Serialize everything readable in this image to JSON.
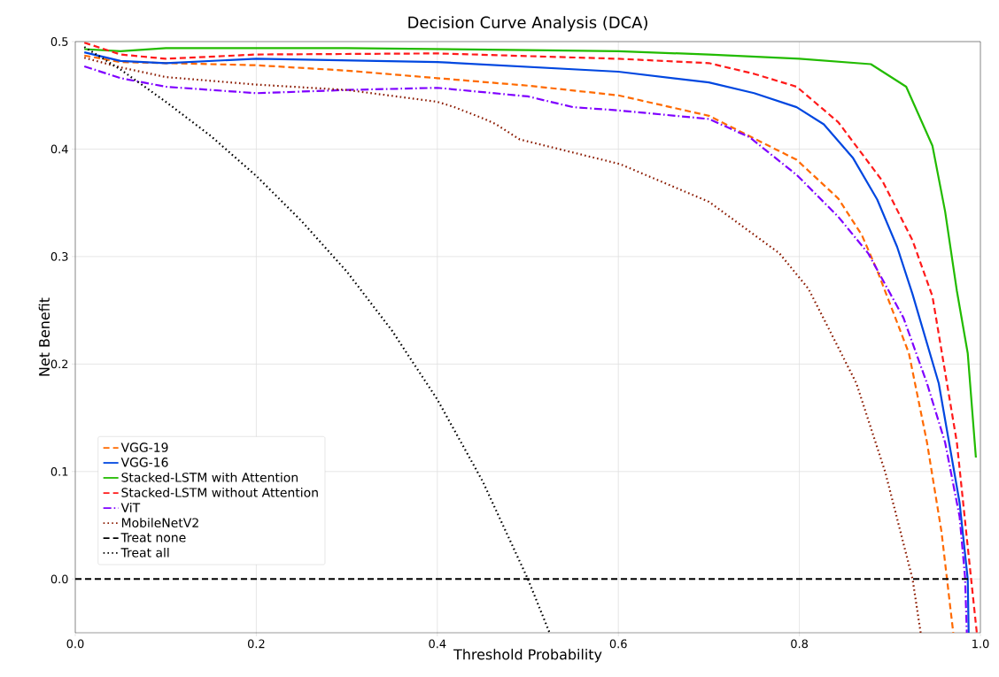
{
  "chart_data": {
    "type": "line",
    "title": "Decision Curve Analysis (DCA)",
    "xlabel": "Threshold Probability",
    "ylabel": "Net Benefit",
    "xlim": [
      0.0,
      1.0
    ],
    "ylim": [
      -0.05,
      0.5
    ],
    "xticks": [
      {
        "value": 0,
        "label": "0.0"
      },
      0.2,
      0.4,
      0.6,
      0.8,
      {
        "value": 1,
        "label": "1.0"
      }
    ],
    "yticks": [
      {
        "value": 0,
        "label": "0.0"
      },
      0.1,
      0.2,
      0.3,
      0.4,
      0.5
    ],
    "grid": true,
    "legend": "bottom left",
    "marker": "none",
    "series": [
      {
        "name": "VGG-19",
        "color": "#ff6a00",
        "line_style": "dashed",
        "x": [
          0.01,
          0.05,
          0.1,
          0.2,
          0.3,
          0.4,
          0.5,
          0.6,
          0.7,
          0.797,
          0.843,
          0.869,
          0.886,
          0.921,
          0.941,
          0.957,
          0.97
        ],
        "values": [
          0.487,
          0.481,
          0.48,
          0.478,
          0.473,
          0.466,
          0.459,
          0.45,
          0.431,
          0.39,
          0.354,
          0.32,
          0.287,
          0.21,
          0.127,
          0.044,
          -0.05
        ]
      },
      {
        "name": "VGG-16",
        "color": "#0047e0",
        "line_style": "solid",
        "x": [
          0.01,
          0.05,
          0.1,
          0.2,
          0.4,
          0.6,
          0.7,
          0.75,
          0.797,
          0.827,
          0.859,
          0.886,
          0.908,
          0.925,
          0.954,
          0.977,
          0.986,
          0.987
        ],
        "values": [
          0.49,
          0.482,
          0.48,
          0.484,
          0.481,
          0.472,
          0.462,
          0.452,
          0.439,
          0.423,
          0.392,
          0.353,
          0.309,
          0.265,
          0.182,
          0.071,
          0.0,
          -0.05
        ]
      },
      {
        "name": "Stacked-LSTM with Attention",
        "color": "#22bb00",
        "line_style": "solid",
        "x": [
          0.01,
          0.05,
          0.1,
          0.3,
          0.5,
          0.6,
          0.7,
          0.8,
          0.879,
          0.918,
          0.947,
          0.961,
          0.974,
          0.986,
          0.995
        ],
        "values": [
          0.493,
          0.491,
          0.494,
          0.494,
          0.492,
          0.491,
          0.488,
          0.484,
          0.479,
          0.458,
          0.403,
          0.342,
          0.268,
          0.21,
          0.113
        ]
      },
      {
        "name": "Stacked-LSTM without Attention",
        "color": "#ff1a1a",
        "line_style": "dashed",
        "x": [
          0.01,
          0.05,
          0.1,
          0.2,
          0.4,
          0.6,
          0.7,
          0.75,
          0.797,
          0.843,
          0.892,
          0.925,
          0.947,
          0.974,
          0.986,
          0.996
        ],
        "values": [
          0.499,
          0.488,
          0.484,
          0.488,
          0.489,
          0.484,
          0.48,
          0.47,
          0.458,
          0.425,
          0.37,
          0.315,
          0.263,
          0.127,
          0.03,
          -0.05
        ]
      },
      {
        "name": "ViT",
        "color": "#7f00ff",
        "line_style": "dashdot",
        "x": [
          0.01,
          0.05,
          0.1,
          0.2,
          0.3,
          0.4,
          0.5,
          0.55,
          0.6,
          0.7,
          0.745,
          0.797,
          0.843,
          0.876,
          0.915,
          0.941,
          0.961,
          0.977,
          0.983,
          0.985
        ],
        "values": [
          0.477,
          0.466,
          0.458,
          0.452,
          0.455,
          0.457,
          0.449,
          0.439,
          0.436,
          0.428,
          0.411,
          0.376,
          0.337,
          0.303,
          0.243,
          0.182,
          0.127,
          0.058,
          0.002,
          -0.05
        ]
      },
      {
        "name": "MobileNetV2",
        "color": "#8b1a00",
        "line_style": "dotted",
        "x": [
          0.01,
          0.05,
          0.1,
          0.2,
          0.3,
          0.4,
          0.419,
          0.452,
          0.465,
          0.491,
          0.602,
          0.7,
          0.778,
          0.81,
          0.83,
          0.863,
          0.895,
          0.925,
          0.934
        ],
        "values": [
          0.485,
          0.476,
          0.467,
          0.46,
          0.455,
          0.444,
          0.439,
          0.428,
          0.423,
          0.409,
          0.386,
          0.351,
          0.303,
          0.27,
          0.237,
          0.182,
          0.099,
          0.0,
          -0.05
        ]
      },
      {
        "name": "Treat none",
        "color": "#000000",
        "line_style": "dashed",
        "x": [
          0.0,
          0.99
        ],
        "values": [
          0.0,
          0.0
        ]
      },
      {
        "name": "Treat all",
        "color": "#000000",
        "line_style": "dotted",
        "x": [
          0.01,
          0.05,
          0.1,
          0.15,
          0.2,
          0.25,
          0.3,
          0.35,
          0.4,
          0.45,
          0.5,
          0.524
        ],
        "values": [
          0.495,
          0.474,
          0.444,
          0.412,
          0.375,
          0.333,
          0.286,
          0.231,
          0.167,
          0.091,
          0.0,
          -0.05
        ]
      }
    ]
  }
}
